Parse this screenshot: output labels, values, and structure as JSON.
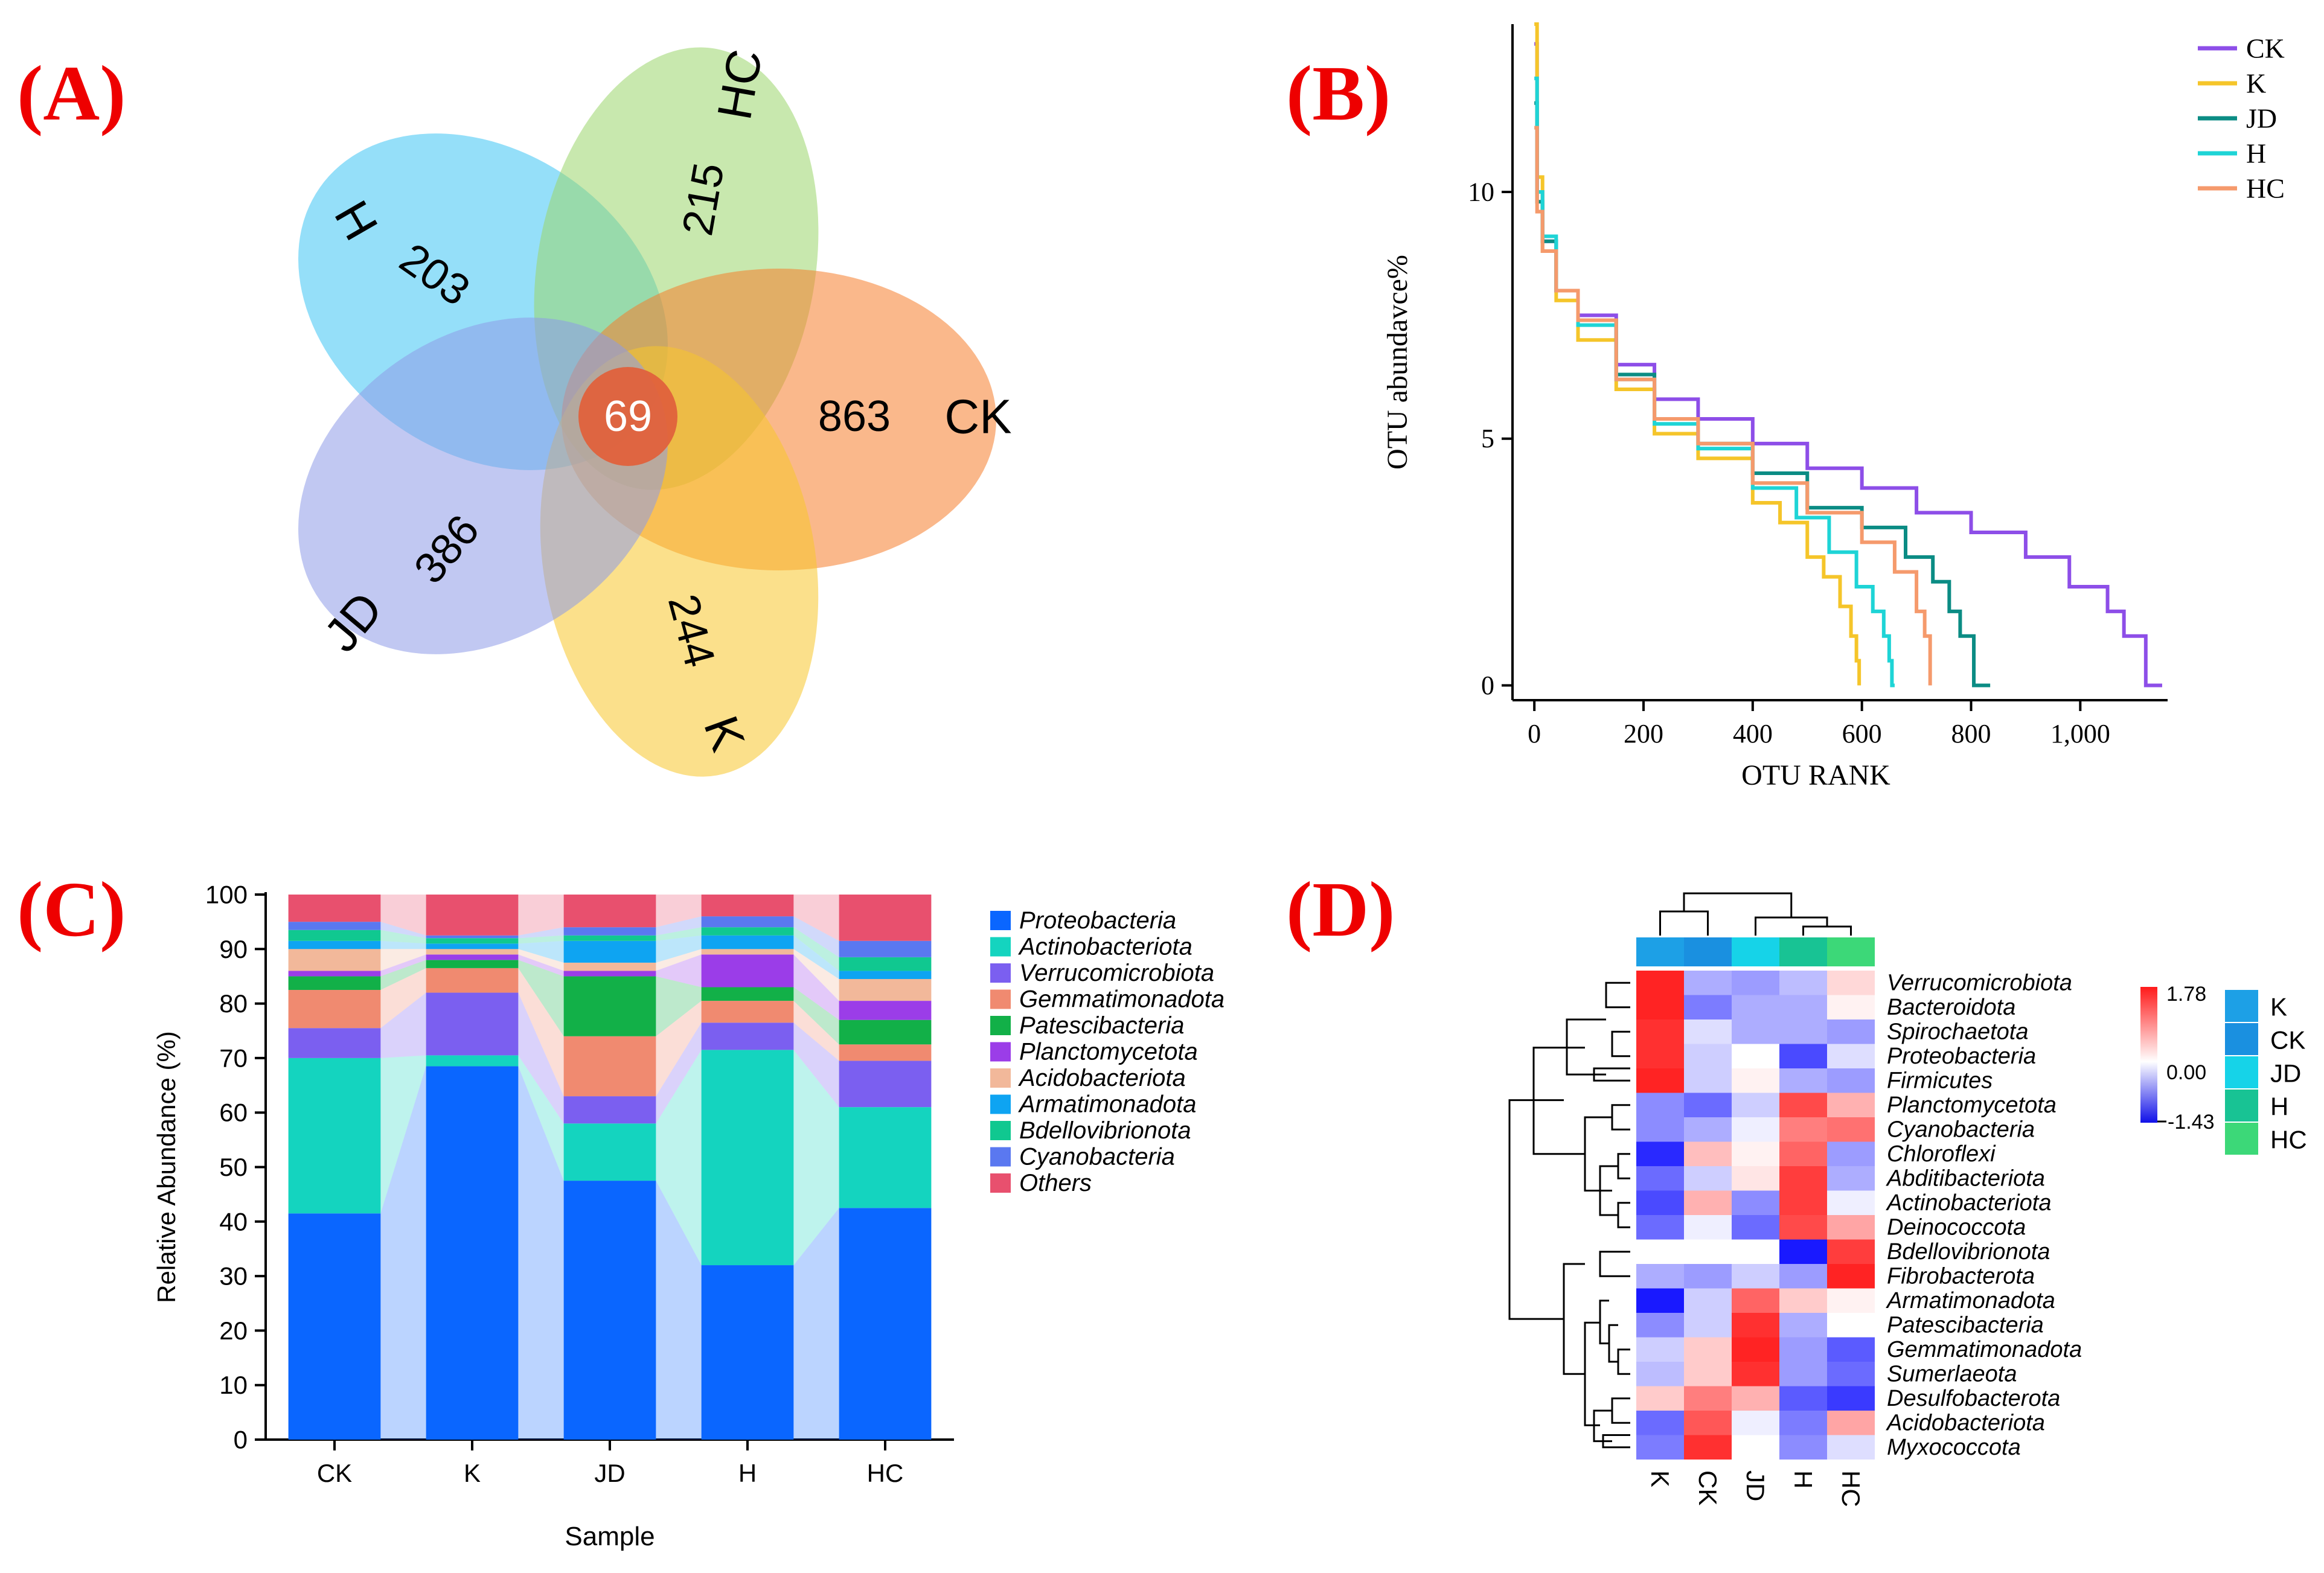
{
  "panels": {
    "A": {
      "label": "(A)",
      "venn": {
        "sets": [
          {
            "name": "H",
            "unique": "203",
            "color": "#3ec4f4"
          },
          {
            "name": "HC",
            "unique": "215",
            "color": "#9bd56b"
          },
          {
            "name": "CK",
            "unique": "863",
            "color": "#f57e2c"
          },
          {
            "name": "K",
            "unique": "244",
            "color": "#f7c62c"
          },
          {
            "name": "JD",
            "unique": "386",
            "color": "#8e9ae8"
          }
        ],
        "core": "69",
        "core_color": "#e0613c"
      }
    },
    "B": {
      "label": "(B)",
      "legend_labels": [
        "CK",
        "K",
        "JD",
        "H",
        "HC"
      ]
    },
    "C": {
      "label": "(C)",
      "legend_labels": [
        "Proteobacteria",
        "Actinobacteriota",
        "Verrucomicrobiota",
        "Gemmatimonadota",
        "Patescibacteria",
        "Planctomycetota",
        "Acidobacteriota",
        "Armatimonadota",
        "Bdellovibrionota",
        "Cyanobacteria",
        "Others"
      ]
    },
    "D": {
      "label": "(D)",
      "colorbar": {
        "max": "1.78",
        "mid": "0.00",
        "min": "-1.43"
      }
    }
  },
  "chart_data": [
    {
      "id": "B",
      "type": "line",
      "title": "",
      "xlabel": "OTU RANK",
      "ylabel": "OTU abundavce%",
      "xlim": [
        -40,
        1160
      ],
      "ylim": [
        -0.3,
        13.4
      ],
      "xticks": [
        0,
        200,
        400,
        600,
        800,
        1000
      ],
      "xtick_labels": [
        "0",
        "200",
        "400",
        "600",
        "800",
        "1,000"
      ],
      "yticks": [
        0,
        5,
        10
      ],
      "ytick_labels": [
        "0",
        "5",
        "10"
      ],
      "legend_position": "top-right",
      "series": [
        {
          "name": "CK",
          "color": "#8d4ee8",
          "step": true,
          "points": [
            [
              0,
              13
            ],
            [
              5,
              10
            ],
            [
              15,
              9
            ],
            [
              40,
              8
            ],
            [
              80,
              7.5
            ],
            [
              150,
              6.5
            ],
            [
              220,
              5.8
            ],
            [
              300,
              5.4
            ],
            [
              400,
              4.9
            ],
            [
              500,
              4.4
            ],
            [
              600,
              4
            ],
            [
              700,
              3.5
            ],
            [
              800,
              3.1
            ],
            [
              900,
              2.6
            ],
            [
              980,
              2
            ],
            [
              1050,
              1.5
            ],
            [
              1080,
              1
            ],
            [
              1110,
              1
            ],
            [
              1120,
              0
            ],
            [
              1150,
              0
            ]
          ]
        },
        {
          "name": "K",
          "color": "#f5c52a",
          "step": true,
          "points": [
            [
              0,
              13.4
            ],
            [
              5,
              10.3
            ],
            [
              15,
              8.8
            ],
            [
              40,
              7.8
            ],
            [
              80,
              7
            ],
            [
              150,
              6
            ],
            [
              220,
              5.1
            ],
            [
              300,
              4.6
            ],
            [
              400,
              3.7
            ],
            [
              450,
              3.3
            ],
            [
              500,
              2.6
            ],
            [
              530,
              2.2
            ],
            [
              560,
              1.6
            ],
            [
              580,
              1
            ],
            [
              590,
              0.5
            ],
            [
              595,
              0
            ]
          ]
        },
        {
          "name": "JD",
          "color": "#0b8c84",
          "step": true,
          "points": [
            [
              0,
              11.8
            ],
            [
              5,
              9.8
            ],
            [
              15,
              9
            ],
            [
              40,
              8
            ],
            [
              80,
              7.4
            ],
            [
              150,
              6.3
            ],
            [
              220,
              5.4
            ],
            [
              300,
              4.9
            ],
            [
              400,
              4.3
            ],
            [
              500,
              3.6
            ],
            [
              600,
              3.2
            ],
            [
              680,
              2.6
            ],
            [
              730,
              2.1
            ],
            [
              760,
              1.5
            ],
            [
              780,
              1
            ],
            [
              800,
              1
            ],
            [
              805,
              0
            ],
            [
              835,
              0
            ]
          ]
        },
        {
          "name": "H",
          "color": "#1ed4d6",
          "step": true,
          "points": [
            [
              0,
              12.3
            ],
            [
              5,
              10
            ],
            [
              15,
              9.1
            ],
            [
              40,
              8
            ],
            [
              80,
              7.3
            ],
            [
              150,
              6.2
            ],
            [
              220,
              5.3
            ],
            [
              300,
              4.8
            ],
            [
              400,
              4
            ],
            [
              480,
              3.4
            ],
            [
              540,
              2.7
            ],
            [
              590,
              2
            ],
            [
              620,
              1.5
            ],
            [
              640,
              1
            ],
            [
              650,
              0.5
            ],
            [
              655,
              0
            ],
            [
              660,
              0
            ]
          ]
        },
        {
          "name": "HC",
          "color": "#f59a6c",
          "step": true,
          "points": [
            [
              0,
              11.3
            ],
            [
              5,
              9.6
            ],
            [
              15,
              8.8
            ],
            [
              40,
              8
            ],
            [
              80,
              7.4
            ],
            [
              150,
              6.2
            ],
            [
              220,
              5.4
            ],
            [
              300,
              4.9
            ],
            [
              400,
              4.1
            ],
            [
              500,
              3.5
            ],
            [
              600,
              2.9
            ],
            [
              660,
              2.3
            ],
            [
              700,
              1.5
            ],
            [
              715,
              1
            ],
            [
              725,
              0
            ]
          ]
        }
      ]
    },
    {
      "id": "C",
      "type": "bar",
      "stacked": true,
      "title": "",
      "xlabel": "Sample",
      "ylabel": "Relative Abundance (%)",
      "ylim": [
        0,
        100
      ],
      "yticks": [
        0,
        10,
        20,
        30,
        40,
        50,
        60,
        70,
        80,
        90,
        100
      ],
      "categories": [
        "CK",
        "K",
        "JD",
        "H",
        "HC"
      ],
      "legend_position": "right",
      "series": [
        {
          "name": "Proteobacteria",
          "color": "#0a66ff",
          "values": [
            41.5,
            68.5,
            47.5,
            32,
            42.5
          ]
        },
        {
          "name": "Actinobacteriota",
          "color": "#14d4bf",
          "values": [
            28.5,
            2,
            10.5,
            39.5,
            18.5
          ]
        },
        {
          "name": "Verrucomicrobiota",
          "color": "#7b5ff0",
          "values": [
            5.5,
            11.5,
            5,
            5,
            8.5
          ]
        },
        {
          "name": "Gemmatimonadota",
          "color": "#f08a70",
          "values": [
            7,
            4.5,
            11,
            4,
            3
          ]
        },
        {
          "name": "Patescibacteria",
          "color": "#12b048",
          "values": [
            2.5,
            1.5,
            11,
            2.5,
            4.5
          ]
        },
        {
          "name": "Planctomycetota",
          "color": "#9b3de8",
          "values": [
            1,
            1,
            1,
            6,
            3.5
          ]
        },
        {
          "name": "Acidobacteriota",
          "color": "#f2b89a",
          "values": [
            4,
            1,
            1.5,
            1,
            4
          ]
        },
        {
          "name": "Armatimonadota",
          "color": "#0ea4f2",
          "values": [
            1.5,
            1,
            4,
            2.5,
            1.5
          ]
        },
        {
          "name": "Bdellovibrionota",
          "color": "#10c890",
          "values": [
            2,
            1,
            1,
            1.5,
            2.5
          ]
        },
        {
          "name": "Cyanobacteria",
          "color": "#5a78f0",
          "values": [
            1.5,
            0.5,
            1.5,
            2,
            3
          ]
        },
        {
          "name": "Others",
          "color": "#e8506e",
          "values": [
            5,
            7.5,
            6,
            4,
            8.5
          ]
        }
      ]
    },
    {
      "id": "D",
      "type": "heatmap",
      "title": "",
      "columns": [
        "K",
        "CK",
        "JD",
        "H",
        "HC"
      ],
      "column_colors": [
        "#1da0e6",
        "#1a90e0",
        "#16d3e8",
        "#18c394",
        "#3cd878"
      ],
      "rows": [
        "Verrucomicrobiota",
        "Bacteroidota",
        "Spirochaetota",
        "Proteobacteria",
        "Firmicutes",
        "Planctomycetota",
        "Cyanobacteria",
        "Chloroflexi",
        "Abditibacteriota",
        "Actinobacteriota",
        "Deinococcota",
        "Bdellovibrionota",
        "Fibrobacterota",
        "Armatimonadota",
        "Patescibacteria",
        "Gemmatimonadota",
        "Sumerlaeota",
        "Desulfobacterota",
        "Acidobacteriota",
        "Myxococcota"
      ],
      "range": [
        -1.43,
        1.78
      ],
      "values": [
        [
          1.7,
          -0.5,
          -0.6,
          -0.4,
          0.3
        ],
        [
          1.7,
          -0.8,
          -0.5,
          -0.5,
          0.1
        ],
        [
          1.6,
          -0.2,
          -0.5,
          -0.5,
          -0.6
        ],
        [
          1.6,
          -0.3,
          0.0,
          -1.1,
          -0.2
        ],
        [
          1.7,
          -0.3,
          0.1,
          -0.5,
          -0.6
        ],
        [
          -0.7,
          -0.9,
          -0.3,
          1.4,
          0.6
        ],
        [
          -0.7,
          -0.5,
          -0.1,
          1.0,
          1.1
        ],
        [
          -1.3,
          0.5,
          0.1,
          1.2,
          -0.6
        ],
        [
          -0.9,
          -0.3,
          0.2,
          1.5,
          -0.5
        ],
        [
          -1.1,
          0.6,
          -0.7,
          1.5,
          -0.1
        ],
        [
          -0.9,
          -0.1,
          -0.9,
          1.4,
          0.7
        ],
        [
          0.0,
          0.0,
          0.0,
          -1.4,
          1.5
        ],
        [
          -0.5,
          -0.6,
          -0.3,
          -0.6,
          1.7
        ],
        [
          -1.4,
          -0.3,
          1.2,
          0.4,
          0.1
        ],
        [
          -0.7,
          -0.3,
          1.6,
          -0.5,
          0.0
        ],
        [
          -0.3,
          0.4,
          1.7,
          -0.6,
          -1.0
        ],
        [
          -0.4,
          0.4,
          1.6,
          -0.6,
          -0.9
        ],
        [
          0.4,
          1.0,
          0.6,
          -1.0,
          -1.2
        ],
        [
          -0.9,
          1.3,
          -0.1,
          -0.8,
          0.7
        ],
        [
          -0.8,
          1.6,
          0.0,
          -0.7,
          -0.2
        ]
      ]
    }
  ]
}
